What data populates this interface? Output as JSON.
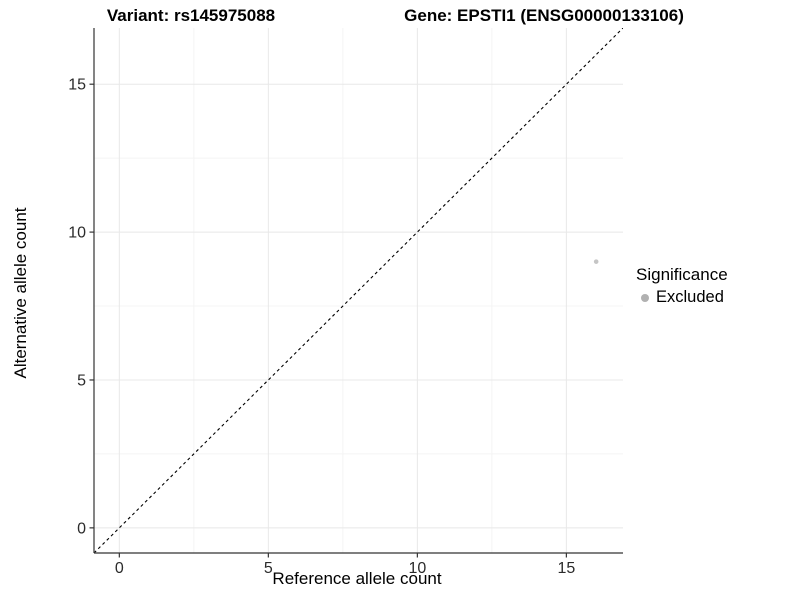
{
  "titles": {
    "variant": "Variant: rs145975088",
    "gene": "Gene: EPSTI1 (ENSG00000133106)"
  },
  "axes": {
    "x_label": "Reference allele count",
    "y_label": "Alternative allele count"
  },
  "legend": {
    "title": "Significance",
    "items": [
      {
        "label": "Excluded",
        "color": "#b1b1b1"
      }
    ]
  },
  "chart_data": {
    "type": "scatter",
    "titles": [
      "Variant: rs145975088",
      "Gene: EPSTI1 (ENSG00000133106)"
    ],
    "xlabel": "Reference allele count",
    "ylabel": "Alternative allele count",
    "xlim": [
      -0.85,
      16.9
    ],
    "ylim": [
      -0.85,
      16.9
    ],
    "x_ticks": [
      0,
      5,
      10,
      15
    ],
    "y_ticks": [
      0,
      5,
      10,
      15
    ],
    "x_minor_ticks": [
      2.5,
      7.5,
      12.5
    ],
    "y_minor_ticks": [
      2.5,
      7.5,
      12.5
    ],
    "grid": "major+minor",
    "legend_position": "right",
    "series": [
      {
        "name": "Excluded",
        "color": "#c5c5c5",
        "point_radius": 2.3,
        "points": [
          {
            "x": 16,
            "y": 9
          }
        ]
      }
    ],
    "reference_line": {
      "slope": 1,
      "intercept": 0,
      "style": "dashed",
      "color": "#000000"
    }
  },
  "style": {
    "grid_major_color": "#e8e8e8",
    "grid_minor_color": "#f4f4f4",
    "axis_line_color": "#333333",
    "tick_label_color": "#2b2b2b",
    "panel_background": "#ffffff"
  }
}
